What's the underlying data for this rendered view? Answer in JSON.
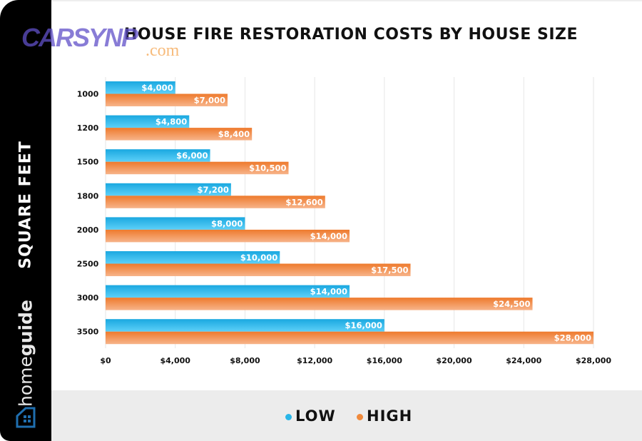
{
  "watermark": {
    "text": "CARSYNP",
    "suffix": ".com"
  },
  "sidebar": {
    "axis_label": "SQUARE FEET",
    "brand_light": "home",
    "brand_bold": "guide"
  },
  "chart_data": {
    "type": "bar",
    "orientation": "horizontal",
    "title": "HOUSE FIRE RESTORATION COSTS BY HOUSE SIZE",
    "ylabel": "SQUARE FEET",
    "xlabel": "",
    "categories": [
      "1000",
      "1200",
      "1500",
      "1800",
      "2000",
      "2500",
      "3000",
      "3500"
    ],
    "series": [
      {
        "name": "LOW",
        "color": "#29b6e8",
        "values": [
          4000,
          4800,
          6000,
          7200,
          8000,
          10000,
          14000,
          16000
        ],
        "labels": [
          "$4,000",
          "$4,800",
          "$6,000",
          "$7,200",
          "$8,000",
          "$10,000",
          "$14,000",
          "$16,000"
        ]
      },
      {
        "name": "HIGH",
        "color": "#f08a3c",
        "values": [
          7000,
          8400,
          10500,
          12600,
          14000,
          17500,
          24500,
          28000
        ],
        "labels": [
          "$7,000",
          "$8,400",
          "$10,500",
          "$12,600",
          "$14,000",
          "$17,500",
          "$24,500",
          "$28,000"
        ]
      }
    ],
    "xlim": [
      0,
      28000
    ],
    "xticks": [
      0,
      4000,
      8000,
      12000,
      16000,
      20000,
      24000,
      28000
    ],
    "xtick_labels": [
      "$0",
      "$4,000",
      "$8,000",
      "$12,000",
      "$16,000",
      "$20,000",
      "$24,000",
      "$28,000"
    ],
    "grid": "vertical",
    "legend": "bottom"
  }
}
